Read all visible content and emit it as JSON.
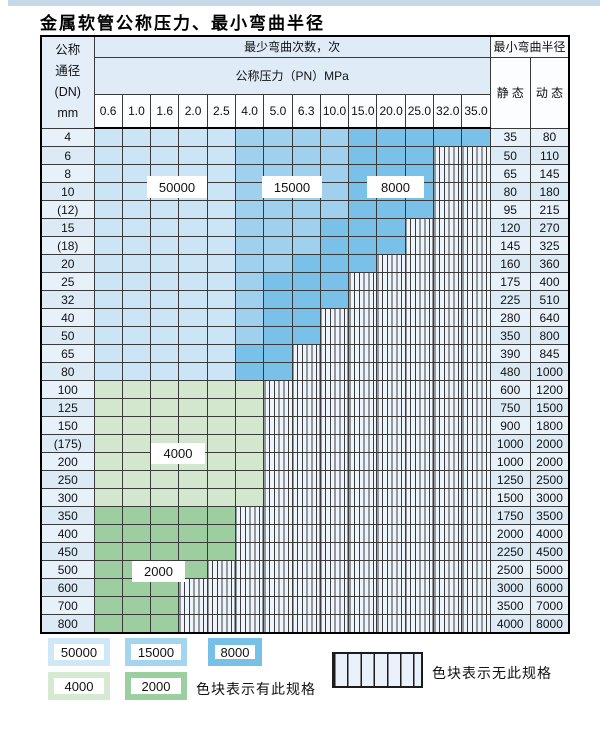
{
  "title": "金属软管公称压力、最小弯曲半径",
  "header": {
    "dn_lines": [
      "公称",
      "通径",
      "(DN)",
      "mm"
    ],
    "bend_cycles": "最少弯曲次数，次",
    "pressure": "公称压力（PN）MPa",
    "min_radius": "最小弯曲半径",
    "static": "静 态",
    "dynamic": "动 态"
  },
  "overlays": {
    "l50000": "50000",
    "l15000": "15000",
    "l8000": "8000",
    "l4000": "4000",
    "l2000": "2000"
  },
  "legend": {
    "s50000": "50000",
    "s15000": "15000",
    "s8000": "8000",
    "s4000": "4000",
    "s2000": "2000",
    "has_spec": "色块表示有此规格",
    "no_spec": "色块表示无此规格"
  },
  "colors": {
    "cycles_50000": "#cce5f6",
    "cycles_15000": "#9fd1ee",
    "cycles_8000": "#79c1e8",
    "cycles_4000": "#d3e7cf",
    "cycles_2000": "#9cce9f",
    "no_spec_fill": "#eef4fb",
    "grid_line": "#3a3a3a",
    "top_strip": "#c7d8e9"
  },
  "chart_data": {
    "type": "table",
    "title": "金属软管公称压力、最小弯曲半径",
    "pressure_columns_MPa": [
      "0.6",
      "1.0",
      "1.6",
      "2.0",
      "2.5",
      "4.0",
      "5.0",
      "6.3",
      "10.0",
      "15.0",
      "20.0",
      "25.0",
      "32.0",
      "35.0"
    ],
    "radius_columns": [
      "静 态",
      "动 态"
    ],
    "zone_legend_note": "segs = runs of [min_bend_cycles, column_count] across the 14 pressure columns; 'none' = 无此规格 (hatched)",
    "rows": [
      {
        "dn": "4",
        "static": "35",
        "dynamic": "80",
        "segs": [
          [
            "50000",
            5
          ],
          [
            "15000",
            4
          ],
          [
            "8000",
            5
          ]
        ]
      },
      {
        "dn": "6",
        "static": "50",
        "dynamic": "110",
        "segs": [
          [
            "50000",
            5
          ],
          [
            "15000",
            4
          ],
          [
            "8000",
            3
          ],
          [
            "none",
            2
          ]
        ]
      },
      {
        "dn": "8",
        "static": "65",
        "dynamic": "145",
        "segs": [
          [
            "50000",
            5
          ],
          [
            "15000",
            4
          ],
          [
            "8000",
            3
          ],
          [
            "none",
            2
          ]
        ]
      },
      {
        "dn": "10",
        "static": "80",
        "dynamic": "180",
        "segs": [
          [
            "50000",
            5
          ],
          [
            "15000",
            4
          ],
          [
            "8000",
            3
          ],
          [
            "none",
            2
          ]
        ]
      },
      {
        "dn": "(12)",
        "static": "95",
        "dynamic": "215",
        "segs": [
          [
            "50000",
            5
          ],
          [
            "15000",
            4
          ],
          [
            "8000",
            3
          ],
          [
            "none",
            2
          ]
        ]
      },
      {
        "dn": "15",
        "static": "120",
        "dynamic": "270",
        "segs": [
          [
            "50000",
            5
          ],
          [
            "15000",
            3
          ],
          [
            "8000",
            3
          ],
          [
            "none",
            3
          ]
        ]
      },
      {
        "dn": "(18)",
        "static": "145",
        "dynamic": "325",
        "segs": [
          [
            "50000",
            5
          ],
          [
            "15000",
            3
          ],
          [
            "8000",
            3
          ],
          [
            "none",
            3
          ]
        ]
      },
      {
        "dn": "20",
        "static": "160",
        "dynamic": "360",
        "segs": [
          [
            "50000",
            5
          ],
          [
            "15000",
            2
          ],
          [
            "8000",
            3
          ],
          [
            "none",
            4
          ]
        ]
      },
      {
        "dn": "25",
        "static": "175",
        "dynamic": "400",
        "segs": [
          [
            "50000",
            5
          ],
          [
            "15000",
            1
          ],
          [
            "8000",
            3
          ],
          [
            "none",
            5
          ]
        ]
      },
      {
        "dn": "32",
        "static": "225",
        "dynamic": "510",
        "segs": [
          [
            "50000",
            5
          ],
          [
            "15000",
            1
          ],
          [
            "8000",
            3
          ],
          [
            "none",
            5
          ]
        ]
      },
      {
        "dn": "40",
        "static": "280",
        "dynamic": "640",
        "segs": [
          [
            "50000",
            5
          ],
          [
            "15000",
            1
          ],
          [
            "8000",
            2
          ],
          [
            "none",
            6
          ]
        ]
      },
      {
        "dn": "50",
        "static": "350",
        "dynamic": "800",
        "segs": [
          [
            "50000",
            5
          ],
          [
            "15000",
            1
          ],
          [
            "8000",
            2
          ],
          [
            "none",
            6
          ]
        ]
      },
      {
        "dn": "65",
        "static": "390",
        "dynamic": "845",
        "segs": [
          [
            "50000",
            5
          ],
          [
            "8000",
            2
          ],
          [
            "none",
            7
          ]
        ]
      },
      {
        "dn": "80",
        "static": "480",
        "dynamic": "1000",
        "segs": [
          [
            "50000",
            5
          ],
          [
            "8000",
            2
          ],
          [
            "none",
            7
          ]
        ]
      },
      {
        "dn": "100",
        "static": "600",
        "dynamic": "1200",
        "segs": [
          [
            "4000",
            6
          ],
          [
            "none",
            8
          ]
        ]
      },
      {
        "dn": "125",
        "static": "750",
        "dynamic": "1500",
        "segs": [
          [
            "4000",
            6
          ],
          [
            "none",
            8
          ]
        ]
      },
      {
        "dn": "150",
        "static": "900",
        "dynamic": "1800",
        "segs": [
          [
            "4000",
            6
          ],
          [
            "none",
            8
          ]
        ]
      },
      {
        "dn": "(175)",
        "static": "1000",
        "dynamic": "2000",
        "segs": [
          [
            "4000",
            6
          ],
          [
            "none",
            8
          ]
        ]
      },
      {
        "dn": "200",
        "static": "1000",
        "dynamic": "2000",
        "segs": [
          [
            "4000",
            6
          ],
          [
            "none",
            8
          ]
        ]
      },
      {
        "dn": "250",
        "static": "1250",
        "dynamic": "2500",
        "segs": [
          [
            "4000",
            6
          ],
          [
            "none",
            8
          ]
        ]
      },
      {
        "dn": "300",
        "static": "1500",
        "dynamic": "3000",
        "segs": [
          [
            "4000",
            6
          ],
          [
            "none",
            8
          ]
        ]
      },
      {
        "dn": "350",
        "static": "1750",
        "dynamic": "3500",
        "segs": [
          [
            "2000",
            5
          ],
          [
            "none",
            9
          ]
        ]
      },
      {
        "dn": "400",
        "static": "2000",
        "dynamic": "4000",
        "segs": [
          [
            "2000",
            5
          ],
          [
            "none",
            9
          ]
        ]
      },
      {
        "dn": "450",
        "static": "2250",
        "dynamic": "4500",
        "segs": [
          [
            "2000",
            5
          ],
          [
            "none",
            9
          ]
        ]
      },
      {
        "dn": "500",
        "static": "2500",
        "dynamic": "5000",
        "segs": [
          [
            "2000",
            4
          ],
          [
            "none",
            10
          ]
        ]
      },
      {
        "dn": "600",
        "static": "3000",
        "dynamic": "6000",
        "segs": [
          [
            "2000",
            3
          ],
          [
            "none",
            11
          ]
        ]
      },
      {
        "dn": "700",
        "static": "3500",
        "dynamic": "7000",
        "segs": [
          [
            "2000",
            3
          ],
          [
            "none",
            11
          ]
        ]
      },
      {
        "dn": "800",
        "static": "4000",
        "dynamic": "8000",
        "segs": [
          [
            "2000",
            3
          ],
          [
            "none",
            11
          ]
        ]
      }
    ]
  }
}
